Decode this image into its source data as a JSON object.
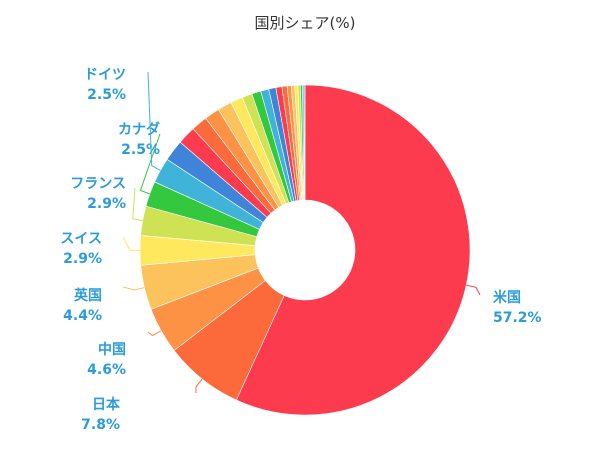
{
  "chart_data": {
    "type": "pie",
    "title": "国別シェア(%)",
    "donut": true,
    "legend": "none",
    "slices": [
      {
        "label": "米国",
        "value_label": "57.2%",
        "value": 57.2,
        "color": "#fc3b4f"
      },
      {
        "label": "日本",
        "value_label": "7.8%",
        "value": 7.8,
        "color": "#fc6a3c"
      },
      {
        "label": "中国",
        "value_label": "4.6%",
        "value": 4.6,
        "color": "#fd9244"
      },
      {
        "label": "英国",
        "value_label": "4.4%",
        "value": 4.4,
        "color": "#fcc25c"
      },
      {
        "label": "スイス",
        "value_label": "2.9%",
        "value": 2.9,
        "color": "#fde85e"
      },
      {
        "label": "フランス",
        "value_label": "2.9%",
        "value": 2.9,
        "color": "#cfe254"
      },
      {
        "label": "カナダ",
        "value_label": "2.5%",
        "value": 2.5,
        "color": "#34c83f"
      },
      {
        "label": "ドイツ",
        "value_label": "2.5%",
        "value": 2.5,
        "color": "#3fb3d8"
      },
      {
        "label": "",
        "value": 2.1,
        "color": "#3f84d8"
      },
      {
        "label": "",
        "value": 1.8,
        "color": "#fc3b4f"
      },
      {
        "label": "",
        "value": 1.6,
        "color": "#fc6a3c"
      },
      {
        "label": "",
        "value": 1.5,
        "color": "#fd9244"
      },
      {
        "label": "",
        "value": 1.4,
        "color": "#fcc25c"
      },
      {
        "label": "",
        "value": 1.2,
        "color": "#fde85e"
      },
      {
        "label": "",
        "value": 1.0,
        "color": "#cfe254"
      },
      {
        "label": "",
        "value": 0.9,
        "color": "#34c83f"
      },
      {
        "label": "",
        "value": 0.8,
        "color": "#3fb3d8"
      },
      {
        "label": "",
        "value": 0.7,
        "color": "#3f84d8"
      },
      {
        "label": "",
        "value": 0.6,
        "color": "#fc3b4f"
      },
      {
        "label": "",
        "value": 0.5,
        "color": "#fc6a3c"
      },
      {
        "label": "",
        "value": 0.4,
        "color": "#fd9244"
      },
      {
        "label": "",
        "value": 0.35,
        "color": "#fcc25c"
      },
      {
        "label": "",
        "value": 0.3,
        "color": "#fde85e"
      },
      {
        "label": "",
        "value": 0.25,
        "color": "#cfe254"
      },
      {
        "label": "",
        "value": 0.2,
        "color": "#34c83f"
      },
      {
        "label": "",
        "value": 0.15,
        "color": "#3fb3d8"
      },
      {
        "label": "",
        "value": 0.1,
        "color": "#3f84d8"
      }
    ],
    "label_color": "#2b9bdc"
  }
}
